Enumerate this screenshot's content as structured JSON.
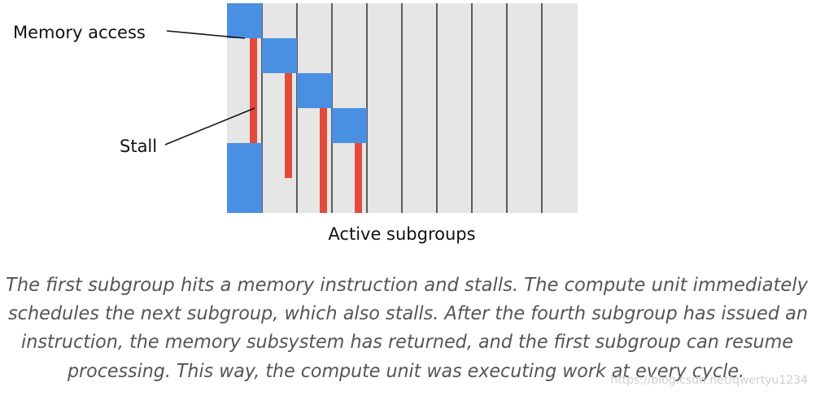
{
  "labels": {
    "memory_access": "Memory access",
    "stall": "Stall",
    "x_axis": "Active subgroups"
  },
  "caption": {
    "lines": [
      "The first subgroup hits a memory instruction and stalls. The compute unit immediately",
      "schedules the next subgroup, which also stalls. After the fourth subgroup has issued an",
      "instruction, the memory subsystem has returned, and the first subgroup can resume",
      "processing. This way, the compute unit was executing work at every cycle."
    ]
  },
  "watermark": "https://blog.csdn.net/qwertyu1234"
}
